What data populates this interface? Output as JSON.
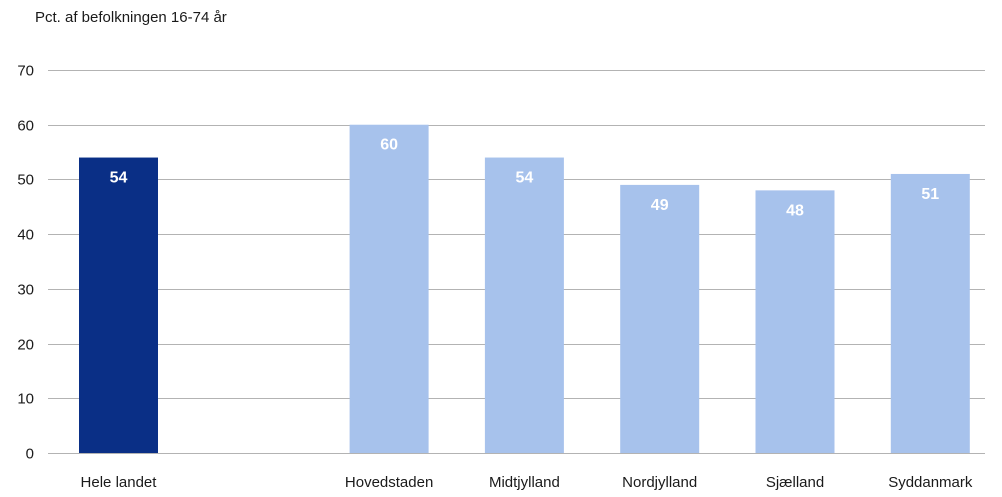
{
  "chart_data": {
    "type": "bar",
    "ylabel": "Pct. af befolkningen 16-74 år",
    "ylim": [
      0,
      70
    ],
    "yticks": [
      0,
      10,
      20,
      30,
      40,
      50,
      60,
      70
    ],
    "grid": true,
    "categories": [
      "Hele landet",
      "",
      "Hovedstaden",
      "Midtjylland",
      "Nordjylland",
      "Sjælland",
      "Syddanmark"
    ],
    "values": [
      54,
      null,
      60,
      54,
      49,
      48,
      51
    ],
    "data_labels": [
      "54",
      "",
      "60",
      "54",
      "49",
      "48",
      "51"
    ],
    "colors": [
      "#0a2f86",
      null,
      "#a7c2ec",
      "#a7c2ec",
      "#a7c2ec",
      "#a7c2ec",
      "#a7c2ec"
    ],
    "label_colors": [
      "#ffffff",
      null,
      "#ffffff",
      "#ffffff",
      "#ffffff",
      "#ffffff",
      "#ffffff"
    ],
    "grid_color": "#b3b3b3"
  }
}
